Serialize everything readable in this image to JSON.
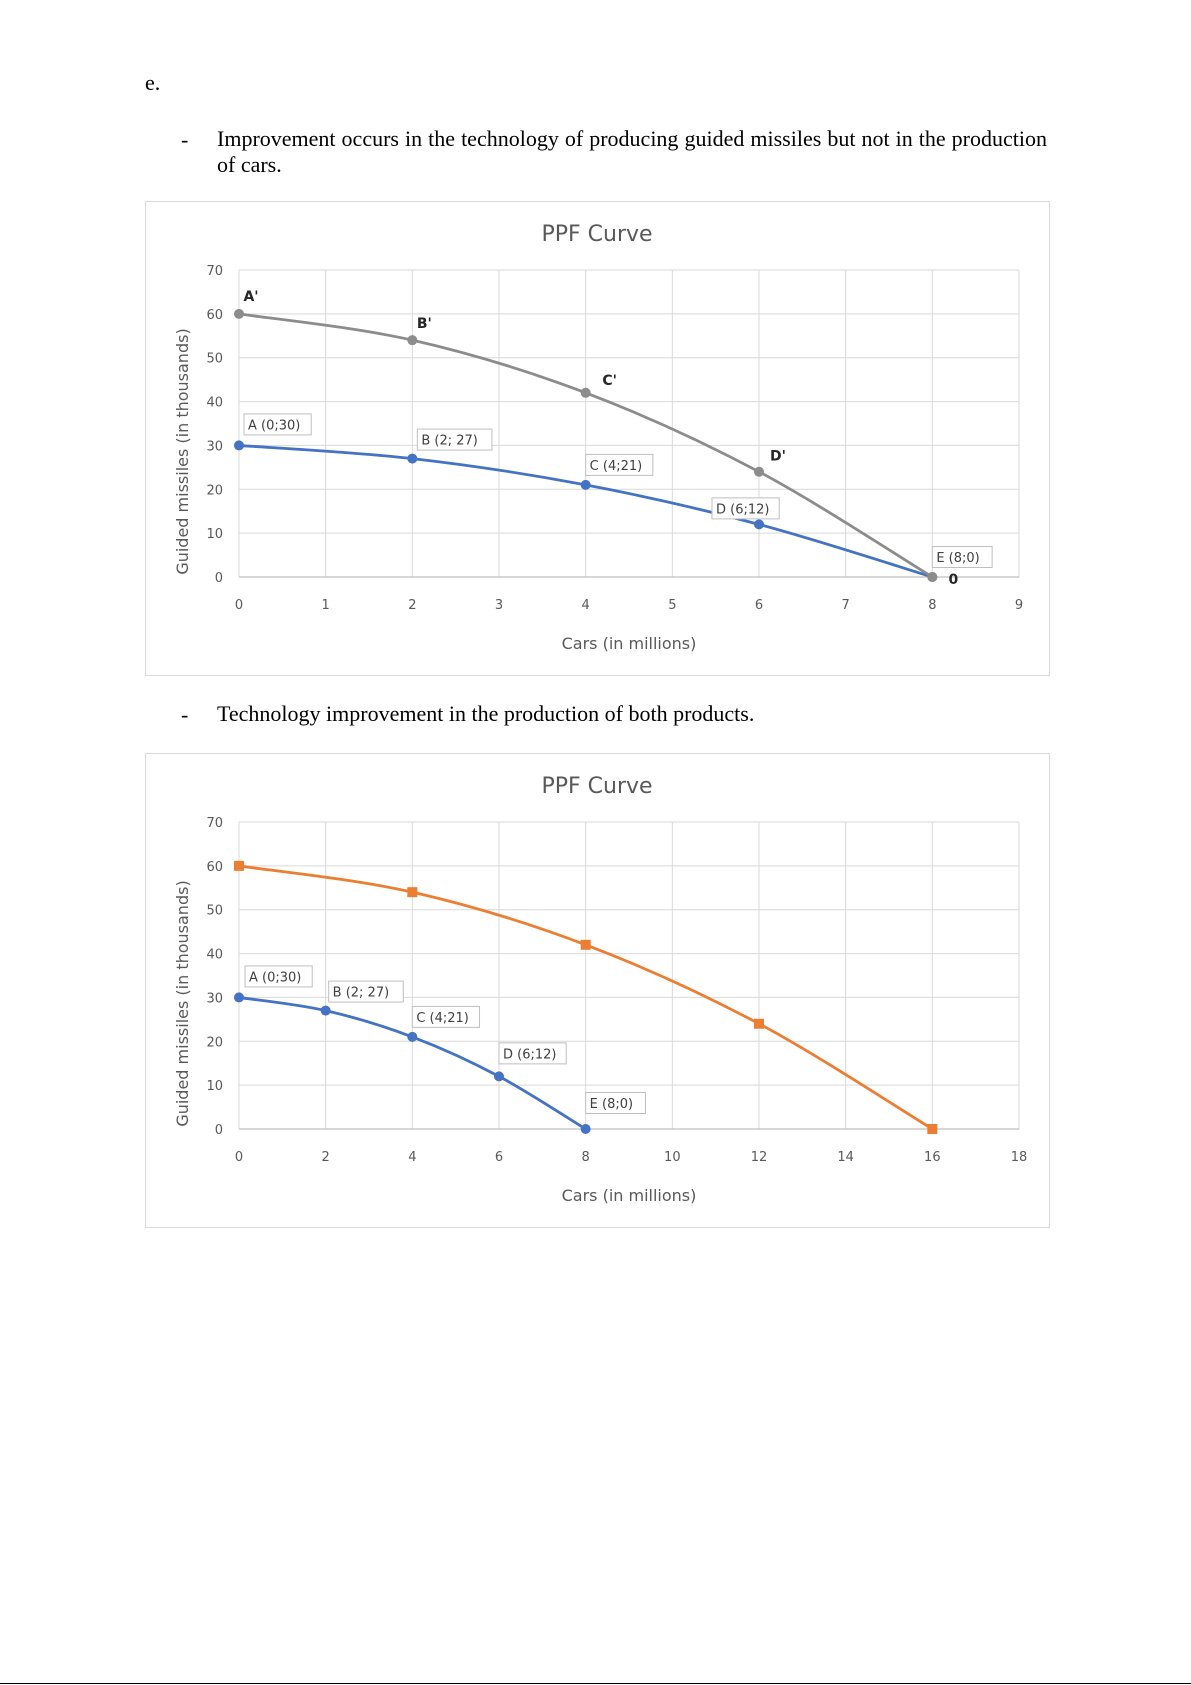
{
  "document": {
    "section_label": "e.",
    "bullets": [
      {
        "marker": "-",
        "text": "Improvement occurs in the technology of producing guided missiles but not in the production of cars."
      },
      {
        "marker": "-",
        "text": "Technology improvement in the production of both products."
      }
    ]
  },
  "colors": {
    "blue": "#4472c4",
    "gray": "#8c8c8c",
    "orange": "#ed7d31",
    "grid": "#d9d9d9"
  },
  "chart_data": [
    {
      "type": "line",
      "title": "PPF Curve",
      "xlabel": "Cars (in millions)",
      "ylabel": "Guided missiles (in thousands)",
      "xlim": [
        0,
        9
      ],
      "ylim": [
        0,
        70
      ],
      "xticks": [
        0,
        1,
        2,
        3,
        4,
        5,
        6,
        7,
        8,
        9
      ],
      "yticks": [
        0,
        10,
        20,
        30,
        40,
        50,
        60,
        70
      ],
      "grid": true,
      "legend": "none",
      "series": [
        {
          "color": "#4472c4",
          "marker": "circle",
          "points": [
            {
              "x": 0,
              "y": 30,
              "label": "A (0;30)",
              "boxed": true
            },
            {
              "x": 2,
              "y": 27,
              "label": "B (2; 27)",
              "boxed": true
            },
            {
              "x": 4,
              "y": 21,
              "label": "C (4;21)",
              "boxed": true
            },
            {
              "x": 6,
              "y": 12,
              "label": "D (6;12)",
              "boxed": true
            },
            {
              "x": 8,
              "y": 0,
              "label": "E (8;0)",
              "boxed": true
            }
          ]
        },
        {
          "color": "#8c8c8c",
          "marker": "circle",
          "points": [
            {
              "x": 0,
              "y": 60,
              "label": "A'",
              "boxed": false
            },
            {
              "x": 2,
              "y": 54,
              "label": "B'",
              "boxed": false
            },
            {
              "x": 4,
              "y": 42,
              "label": "C'",
              "boxed": false
            },
            {
              "x": 6,
              "y": 24,
              "label": "D'",
              "boxed": false
            },
            {
              "x": 8,
              "y": 0,
              "label": "0",
              "boxed": false
            }
          ]
        }
      ]
    },
    {
      "type": "line",
      "title": "PPF Curve",
      "xlabel": "Cars (in millions)",
      "ylabel": "Guided missiles (in thousands)",
      "xlim": [
        0,
        18
      ],
      "ylim": [
        0,
        70
      ],
      "xticks": [
        0,
        2,
        4,
        6,
        8,
        10,
        12,
        14,
        16,
        18
      ],
      "yticks": [
        0,
        10,
        20,
        30,
        40,
        50,
        60,
        70
      ],
      "grid": true,
      "legend": "none",
      "series": [
        {
          "color": "#4472c4",
          "marker": "circle",
          "points": [
            {
              "x": 0,
              "y": 30,
              "label": "A (0;30)",
              "boxed": true
            },
            {
              "x": 2,
              "y": 27,
              "label": "B (2; 27)",
              "boxed": true
            },
            {
              "x": 4,
              "y": 21,
              "label": "C (4;21)",
              "boxed": true
            },
            {
              "x": 6,
              "y": 12,
              "label": "D (6;12)",
              "boxed": true
            },
            {
              "x": 8,
              "y": 0,
              "label": "E (8;0)",
              "boxed": true
            }
          ]
        },
        {
          "color": "#ed7d31",
          "marker": "square",
          "points": [
            {
              "x": 0,
              "y": 60,
              "label": "",
              "boxed": false
            },
            {
              "x": 4,
              "y": 54,
              "label": "",
              "boxed": false
            },
            {
              "x": 8,
              "y": 42,
              "label": "",
              "boxed": false
            },
            {
              "x": 12,
              "y": 24,
              "label": "",
              "boxed": false
            },
            {
              "x": 16,
              "y": 0,
              "label": "",
              "boxed": false
            }
          ]
        }
      ]
    }
  ]
}
